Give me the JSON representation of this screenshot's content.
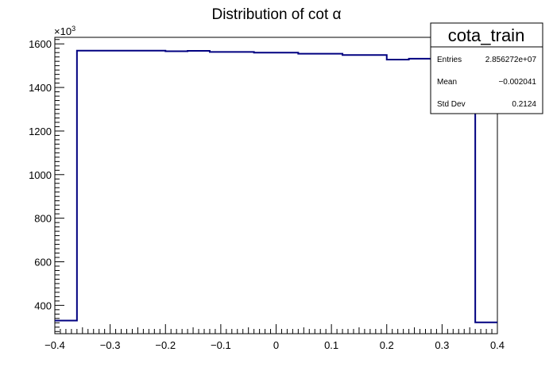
{
  "chart_data": {
    "type": "histogram",
    "title": "Distribution of cot  α",
    "xlabel": "",
    "ylabel": "",
    "y_multiplier": "×10",
    "y_multiplier_exp": "3",
    "xlim": [
      -0.4,
      0.4
    ],
    "ylim": [
      270,
      1630
    ],
    "x_ticks": [
      -0.4,
      -0.3,
      -0.2,
      -0.1,
      0,
      0.1,
      0.2,
      0.3,
      0.4
    ],
    "x_tick_labels": [
      "−0.4",
      "−0.3",
      "−0.2",
      "−0.1",
      "0",
      "0.1",
      "0.2",
      "0.3",
      "0.4"
    ],
    "y_ticks": [
      400,
      600,
      800,
      1000,
      1200,
      1400,
      1600
    ],
    "y_tick_labels": [
      "400",
      "600",
      "800",
      "1000",
      "1200",
      "1400",
      "1600"
    ],
    "line_color": "#000080",
    "bins": [
      {
        "x0": -0.4,
        "x1": -0.36,
        "y": 330
      },
      {
        "x0": -0.36,
        "x1": -0.28,
        "y": 1569
      },
      {
        "x0": -0.28,
        "x1": -0.2,
        "y": 1569
      },
      {
        "x0": -0.2,
        "x1": -0.16,
        "y": 1566
      },
      {
        "x0": -0.16,
        "x1": -0.12,
        "y": 1568
      },
      {
        "x0": -0.12,
        "x1": -0.04,
        "y": 1563
      },
      {
        "x0": -0.04,
        "x1": 0.04,
        "y": 1560
      },
      {
        "x0": 0.04,
        "x1": 0.12,
        "y": 1555
      },
      {
        "x0": 0.12,
        "x1": 0.2,
        "y": 1549
      },
      {
        "x0": 0.2,
        "x1": 0.24,
        "y": 1528
      },
      {
        "x0": 0.24,
        "x1": 0.28,
        "y": 1532
      },
      {
        "x0": 0.28,
        "x1": 0.36,
        "y": 1525
      },
      {
        "x0": 0.36,
        "x1": 0.4,
        "y": 322
      }
    ],
    "stats": {
      "name": "cota_train",
      "entries_label": "Entries",
      "entries": "2.856272e+07",
      "mean_label": "Mean",
      "mean": "−0.002041",
      "std_label": "Std Dev",
      "std": "0.2124"
    }
  }
}
